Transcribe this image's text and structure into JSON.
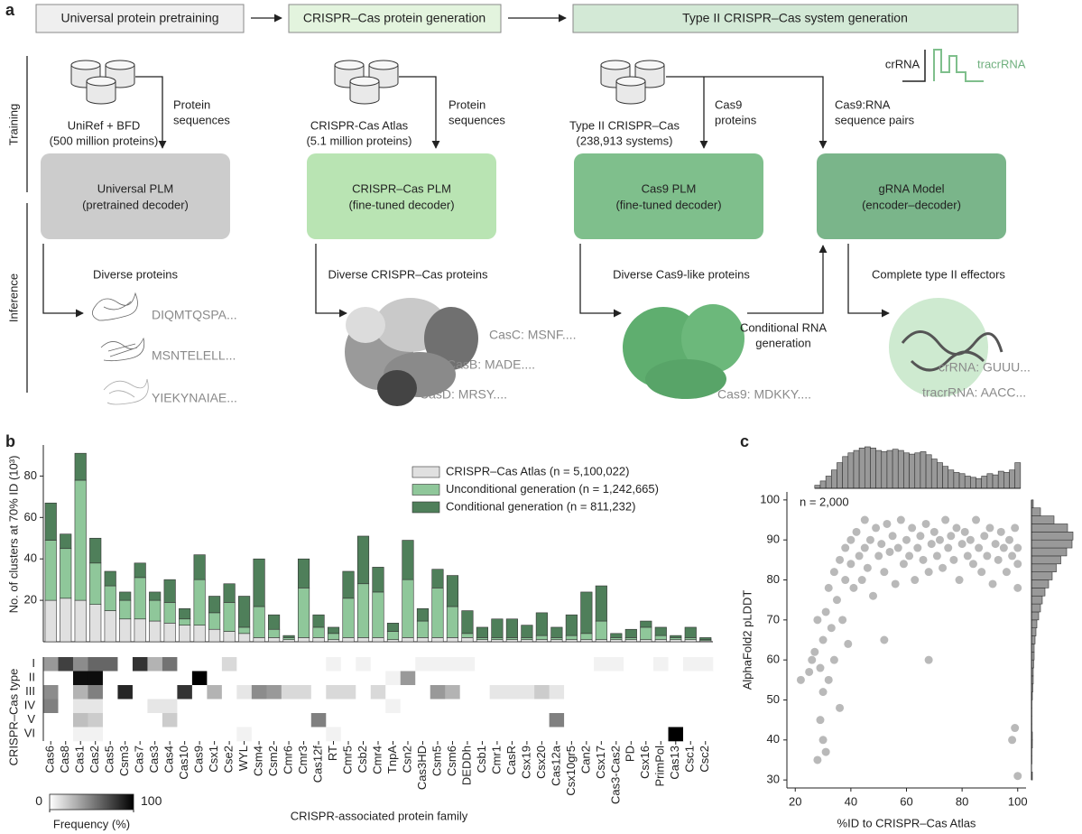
{
  "diagram": {
    "panel_label": "a",
    "stages": [
      "Universal protein pretraining",
      "CRISPR–Cas protein generation",
      "Type II CRISPR–Cas system generation"
    ],
    "row_labels": [
      "Training",
      "Inference"
    ],
    "databases": [
      [
        "UniRef + BFD",
        "(500 million proteins)"
      ],
      [
        "CRISPR-Cas Atlas",
        "(5.1 million proteins)"
      ],
      [
        "Type II CRISPR–Cas",
        "(238,913 systems)"
      ]
    ],
    "inputs": [
      [
        "Protein",
        "sequences"
      ],
      [
        "Protein",
        "sequences"
      ],
      [
        "Cas9",
        "proteins"
      ],
      [
        "Cas9:RNA",
        "sequence pairs"
      ]
    ],
    "models": [
      [
        "Universal PLM",
        "(pretrained decoder)"
      ],
      [
        "CRISPR–Cas PLM",
        "(fine-tuned decoder)"
      ],
      [
        "Cas9 PLM",
        "(fine-tuned decoder)"
      ],
      [
        "gRNA Model",
        "(encoder–decoder)"
      ]
    ],
    "outputs": [
      "Diverse proteins",
      "Diverse CRISPR–Cas proteins",
      "Diverse Cas9-like proteins",
      "Complete type II effectors"
    ],
    "sequences": [
      [
        "DIQMTQSPA...",
        "MSNTELELL...",
        "YIEKYNAIAE..."
      ],
      [
        "CasC: MSNF....",
        "CasB: MADE....",
        "CasD: MRSY...."
      ],
      [
        "Cas9: MDKKY...."
      ],
      [
        "crRNA: GUUU...",
        "tracrRNA: AACC..."
      ]
    ],
    "conditional": [
      "Conditional RNA",
      "generation"
    ],
    "rna_legend": [
      "crRNA",
      "tracrRNA"
    ]
  },
  "chart_data": [
    {
      "type": "bar",
      "stacked": true,
      "panel_label": "b",
      "ylabel": "No. of clusters at 70% ID (10³)",
      "categories": [
        "Cas6",
        "Cas8",
        "Cas1",
        "Cas2",
        "Cas5",
        "Csm3",
        "Cas7",
        "Cas3",
        "Cas4",
        "Cas10",
        "Cas9",
        "Csx1",
        "Cse2",
        "WYL",
        "Csm4",
        "Csm2",
        "Cmr6",
        "Cmr3",
        "Cas12f",
        "RT",
        "Cmr5",
        "Csb2",
        "Cmr4",
        "TnpA",
        "Csn2",
        "Cas3HD",
        "Csm5",
        "Csm6",
        "DEDDh",
        "Csb1",
        "Cmr1",
        "CasR",
        "Csx19",
        "Csx20",
        "Cas12a",
        "Csx10gr5",
        "Can2",
        "Csx17",
        "Cas3-Cas2",
        "PD",
        "Csx16",
        "PrimPol",
        "Cas13",
        "Csc1",
        "Csc2"
      ],
      "series": [
        {
          "name": "CRISPR–Cas Atlas (n = 5,100,022)",
          "color": "#e0e0e0",
          "values": [
            20,
            21,
            20,
            18,
            15,
            11,
            11,
            10,
            9,
            8,
            8,
            6,
            5,
            4,
            2,
            2,
            1,
            2,
            2,
            1,
            2,
            2,
            2,
            1,
            2,
            2,
            2,
            2,
            2,
            1,
            1,
            1,
            1,
            1,
            1,
            1,
            1,
            1,
            1,
            1,
            1,
            1,
            1,
            1,
            0.5
          ]
        },
        {
          "name": "Unconditional generation (n = 1,242,665)",
          "color": "#8fc79a",
          "values": [
            29,
            24,
            58,
            20,
            12,
            9,
            20,
            10,
            10,
            3,
            22,
            8,
            14,
            3,
            15,
            4,
            1,
            24,
            5,
            3,
            19,
            26,
            22,
            4,
            28,
            8,
            24,
            15,
            2,
            1,
            1,
            1,
            1,
            2,
            1,
            2,
            3,
            9,
            1,
            1,
            6,
            2,
            1,
            1,
            0.5
          ]
        },
        {
          "name": "Conditional generation (n = 811,232)",
          "color": "#4f7f5a",
          "values": [
            18,
            7,
            13,
            12,
            7,
            4,
            7,
            4,
            11,
            5,
            12,
            8,
            9,
            15,
            23,
            7,
            1,
            14,
            6,
            3,
            13,
            23,
            12,
            4,
            19,
            6,
            9,
            15,
            11,
            5,
            9,
            9,
            6,
            11,
            5,
            10,
            20,
            17,
            2,
            4,
            3,
            4,
            1,
            5,
            1
          ]
        }
      ],
      "ylim": [
        0,
        95
      ],
      "yticks": [
        20,
        40,
        60,
        80
      ],
      "legend": "upper right"
    },
    {
      "type": "heatmap",
      "ylabel": "CRISPR–Cas type",
      "xlabel": "CRISPR-associated protein family",
      "rows": [
        "I",
        "II",
        "III",
        "IV",
        "V",
        "VI"
      ],
      "values": [
        [
          40,
          75,
          45,
          60,
          60,
          0,
          80,
          30,
          55,
          0,
          0,
          0,
          15,
          0,
          0,
          0,
          0,
          0,
          0,
          5,
          0,
          5,
          0,
          0,
          0,
          5,
          5,
          5,
          5,
          0,
          0,
          0,
          0,
          0,
          0,
          0,
          0,
          5,
          5,
          0,
          0,
          5,
          0,
          5,
          5
        ],
        [
          0,
          0,
          95,
          95,
          0,
          0,
          0,
          0,
          0,
          0,
          100,
          0,
          0,
          0,
          0,
          0,
          0,
          0,
          0,
          0,
          0,
          0,
          0,
          5,
          40,
          0,
          0,
          0,
          0,
          0,
          0,
          0,
          0,
          0,
          0,
          0,
          0,
          0,
          0,
          0,
          0,
          0,
          0,
          0,
          0
        ],
        [
          45,
          0,
          30,
          50,
          0,
          85,
          0,
          0,
          0,
          80,
          0,
          30,
          0,
          10,
          45,
          40,
          15,
          15,
          0,
          15,
          15,
          0,
          15,
          0,
          0,
          0,
          40,
          30,
          0,
          0,
          10,
          10,
          10,
          20,
          10,
          0,
          0,
          0,
          0,
          0,
          0,
          0,
          0,
          0,
          0
        ],
        [
          50,
          0,
          10,
          10,
          0,
          0,
          0,
          10,
          10,
          0,
          0,
          0,
          0,
          0,
          0,
          0,
          0,
          0,
          0,
          0,
          0,
          0,
          0,
          5,
          0,
          0,
          0,
          0,
          0,
          0,
          0,
          0,
          0,
          0,
          0,
          0,
          0,
          0,
          0,
          0,
          0,
          0,
          0,
          0,
          0
        ],
        [
          0,
          0,
          25,
          20,
          0,
          0,
          0,
          0,
          20,
          0,
          0,
          0,
          0,
          0,
          0,
          0,
          0,
          0,
          50,
          0,
          0,
          0,
          0,
          0,
          0,
          0,
          0,
          0,
          0,
          0,
          0,
          0,
          0,
          0,
          50,
          0,
          0,
          0,
          0,
          0,
          0,
          0,
          0,
          0,
          0
        ],
        [
          0,
          0,
          5,
          5,
          0,
          0,
          0,
          0,
          0,
          0,
          0,
          0,
          0,
          5,
          0,
          0,
          0,
          0,
          0,
          5,
          0,
          0,
          0,
          0,
          0,
          0,
          0,
          0,
          0,
          0,
          0,
          0,
          0,
          0,
          0,
          0,
          0,
          0,
          0,
          0,
          0,
          0,
          100,
          0,
          0
        ]
      ],
      "colorbar": {
        "ticks": [
          0,
          100
        ],
        "label": "Frequency (%)",
        "colors": [
          "#ffffff",
          "#000000"
        ]
      }
    },
    {
      "type": "scatter",
      "panel_label": "c",
      "annotation": "n = 2,000",
      "xlabel": "%ID to CRISPR–Cas Atlas",
      "ylabel": "AlphaFold2 pLDDT",
      "color": "#808080",
      "x": [
        22,
        25,
        27,
        28,
        28,
        29,
        30,
        30,
        30,
        31,
        32,
        32,
        33,
        34,
        34,
        35,
        36,
        37,
        38,
        38,
        39,
        40,
        40,
        41,
        42,
        43,
        44,
        45,
        45,
        46,
        47,
        48,
        49,
        50,
        51,
        52,
        53,
        54,
        55,
        56,
        57,
        58,
        59,
        60,
        61,
        62,
        63,
        64,
        65,
        66,
        67,
        68,
        68,
        69,
        70,
        71,
        72,
        73,
        74,
        75,
        76,
        77,
        78,
        79,
        80,
        81,
        82,
        83,
        84,
        85,
        86,
        87,
        88,
        89,
        90,
        91,
        92,
        93,
        94,
        95,
        96,
        97,
        98,
        98,
        99,
        99,
        100,
        100,
        100,
        100,
        52,
        36,
        29,
        31,
        26
      ],
      "y": [
        55,
        57,
        62,
        70,
        35,
        45,
        40,
        52,
        65,
        72,
        55,
        78,
        68,
        60,
        82,
        75,
        85,
        70,
        88,
        80,
        64,
        90,
        84,
        78,
        92,
        86,
        80,
        95,
        88,
        83,
        90,
        76,
        93,
        86,
        89,
        82,
        94,
        87,
        91,
        79,
        88,
        95,
        84,
        90,
        86,
        93,
        80,
        88,
        91,
        85,
        94,
        82,
        60,
        89,
        92,
        86,
        90,
        83,
        95,
        88,
        91,
        85,
        93,
        80,
        89,
        92,
        86,
        90,
        84,
        95,
        88,
        82,
        91,
        86,
        93,
        79,
        89,
        85,
        92,
        88,
        82,
        90,
        86,
        40,
        93,
        43,
        88,
        31,
        84,
        78,
        65,
        48,
        58,
        37,
        60
      ],
      "xlim": [
        17,
        103
      ],
      "ylim": [
        28,
        102
      ],
      "xticks": [
        20,
        40,
        60,
        80,
        100
      ],
      "yticks": [
        30,
        40,
        50,
        60,
        70,
        80,
        90,
        100
      ]
    },
    {
      "type": "histogram",
      "orientation": "vertical",
      "color": "#999999",
      "bins": [
        27,
        29,
        31,
        33,
        35,
        37,
        39,
        41,
        43,
        45,
        47,
        49,
        51,
        53,
        55,
        57,
        59,
        61,
        63,
        65,
        67,
        69,
        71,
        73,
        75,
        77,
        79,
        81,
        83,
        85,
        87,
        89,
        91,
        93,
        95,
        97,
        99,
        101
      ],
      "values": [
        5,
        12,
        20,
        30,
        42,
        52,
        58,
        62,
        66,
        68,
        66,
        62,
        60,
        62,
        64,
        62,
        58,
        56,
        58,
        60,
        55,
        48,
        42,
        36,
        30,
        26,
        24,
        20,
        18,
        16,
        20,
        24,
        22,
        28,
        26,
        30,
        42
      ]
    },
    {
      "type": "histogram",
      "orientation": "horizontal",
      "color": "#999999",
      "bins": [
        30,
        32,
        34,
        36,
        38,
        40,
        42,
        44,
        46,
        48,
        50,
        52,
        54,
        56,
        58,
        60,
        62,
        64,
        66,
        68,
        70,
        72,
        74,
        76,
        78,
        80,
        82,
        84,
        86,
        88,
        90,
        92,
        94,
        96,
        98,
        100
      ],
      "values": [
        2,
        0,
        1,
        1,
        2,
        2,
        1,
        1,
        1,
        1,
        2,
        3,
        4,
        4,
        5,
        6,
        6,
        8,
        10,
        12,
        16,
        20,
        24,
        30,
        38,
        46,
        55,
        65,
        78,
        90,
        92,
        80,
        50,
        20,
        4
      ]
    }
  ]
}
